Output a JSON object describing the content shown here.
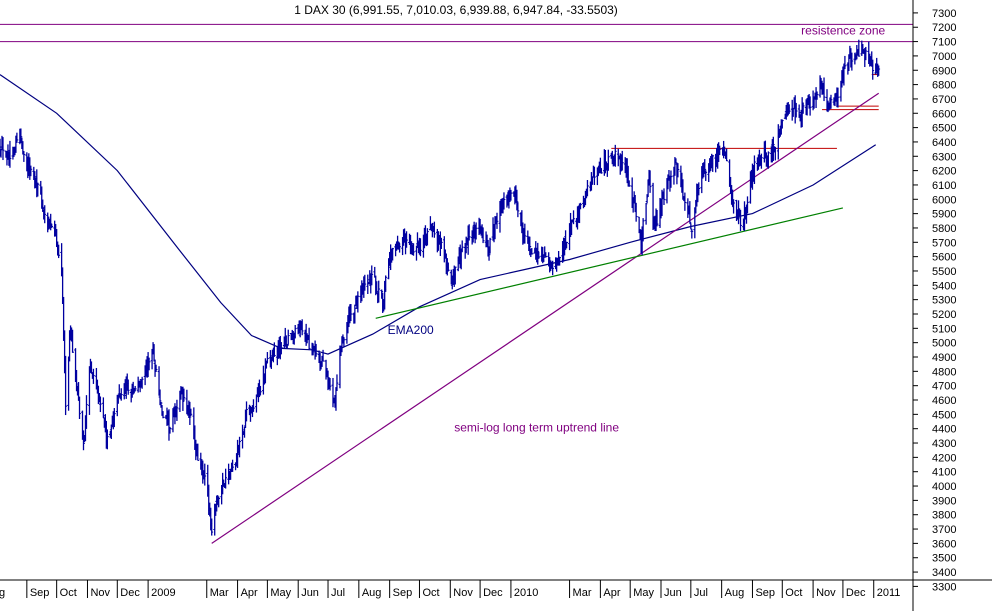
{
  "chart_data": {
    "type": "line",
    "title": "1 DAX 30 (6,991.55, 7,010.03, 6,939.88, 6,947.84, -33.5503)",
    "xlabel": "",
    "ylabel": "",
    "ylim": [
      3240,
      7390
    ],
    "x_range": [
      "2008-08-05",
      "2011-01-06"
    ],
    "y_ticks": [
      3300,
      3400,
      3500,
      3600,
      3700,
      3800,
      3900,
      4000,
      4100,
      4200,
      4300,
      4400,
      4500,
      4600,
      4700,
      4800,
      4900,
      5000,
      5100,
      5200,
      5300,
      5400,
      5500,
      5600,
      5700,
      5800,
      5900,
      6000,
      6100,
      6200,
      6300,
      6400,
      6500,
      6600,
      6700,
      6800,
      6900,
      7000,
      7100,
      7200,
      7300
    ],
    "x_ticks": [
      {
        "date": "2008-08-01",
        "label": "g"
      },
      {
        "date": "2008-09-01",
        "label": "Sep"
      },
      {
        "date": "2008-10-01",
        "label": "Oct"
      },
      {
        "date": "2008-11-01",
        "label": "Nov"
      },
      {
        "date": "2008-12-01",
        "label": "Dec"
      },
      {
        "date": "2009-01-01",
        "label": "2009"
      },
      {
        "date": "2009-03-01",
        "label": "Mar"
      },
      {
        "date": "2009-04-01",
        "label": "Apr"
      },
      {
        "date": "2009-05-01",
        "label": "May"
      },
      {
        "date": "2009-06-01",
        "label": "Jun"
      },
      {
        "date": "2009-07-01",
        "label": "Jul"
      },
      {
        "date": "2009-08-01",
        "label": "Aug"
      },
      {
        "date": "2009-09-01",
        "label": "Sep"
      },
      {
        "date": "2009-10-01",
        "label": "Oct"
      },
      {
        "date": "2009-11-01",
        "label": "Nov"
      },
      {
        "date": "2009-12-01",
        "label": "Dec"
      },
      {
        "date": "2010-01-01",
        "label": "2010"
      },
      {
        "date": "2010-03-01",
        "label": "Mar"
      },
      {
        "date": "2010-04-01",
        "label": "Apr"
      },
      {
        "date": "2010-05-01",
        "label": "May"
      },
      {
        "date": "2010-06-01",
        "label": "Jun"
      },
      {
        "date": "2010-07-01",
        "label": "Jul"
      },
      {
        "date": "2010-08-01",
        "label": "Aug"
      },
      {
        "date": "2010-09-01",
        "label": "Sep"
      },
      {
        "date": "2010-10-01",
        "label": "Oct"
      },
      {
        "date": "2010-11-01",
        "label": "Nov"
      },
      {
        "date": "2010-12-01",
        "label": "Dec"
      },
      {
        "date": "2011-01-01",
        "label": "2011"
      }
    ],
    "series": [
      {
        "name": "",
        "style": "ohlc",
        "color": "#0000a0",
        "x": [
          "2008-08-05",
          "2008-08-15",
          "2008-08-25",
          "2008-09-01",
          "2008-09-10",
          "2008-09-20",
          "2008-09-30",
          "2008-10-06",
          "2008-10-10",
          "2008-10-15",
          "2008-10-20",
          "2008-10-28",
          "2008-11-04",
          "2008-11-14",
          "2008-11-21",
          "2008-12-01",
          "2008-12-10",
          "2008-12-20",
          "2009-01-06",
          "2009-01-15",
          "2009-01-23",
          "2009-02-03",
          "2009-02-12",
          "2009-02-20",
          "2009-03-01",
          "2009-03-06",
          "2009-03-12",
          "2009-03-20",
          "2009-03-31",
          "2009-04-10",
          "2009-04-20",
          "2009-05-01",
          "2009-05-12",
          "2009-05-25",
          "2009-06-05",
          "2009-06-15",
          "2009-06-25",
          "2009-07-03",
          "2009-07-08",
          "2009-07-14",
          "2009-07-24",
          "2009-08-05",
          "2009-08-15",
          "2009-08-25",
          "2009-09-02",
          "2009-09-15",
          "2009-09-25",
          "2009-10-05",
          "2009-10-15",
          "2009-10-25",
          "2009-11-02",
          "2009-11-10",
          "2009-11-20",
          "2009-12-01",
          "2009-12-10",
          "2009-12-20",
          "2010-01-04",
          "2010-01-12",
          "2010-01-22",
          "2010-02-05",
          "2010-02-12",
          "2010-02-22",
          "2010-03-05",
          "2010-03-15",
          "2010-03-25",
          "2010-04-05",
          "2010-04-15",
          "2010-04-26",
          "2010-05-07",
          "2010-05-12",
          "2010-05-20",
          "2010-05-25",
          "2010-06-05",
          "2010-06-15",
          "2010-06-25",
          "2010-07-02",
          "2010-07-12",
          "2010-07-22",
          "2010-08-03",
          "2010-08-12",
          "2010-08-20",
          "2010-08-25",
          "2010-09-03",
          "2010-09-13",
          "2010-09-23",
          "2010-10-01",
          "2010-10-10",
          "2010-10-20",
          "2010-11-01",
          "2010-11-08",
          "2010-11-15",
          "2010-11-25",
          "2010-12-01",
          "2010-12-10",
          "2010-12-20",
          "2010-12-28",
          "2011-01-03",
          "2011-01-06"
        ],
        "values": [
          6400,
          6300,
          6450,
          6250,
          6150,
          5850,
          5750,
          5500,
          4600,
          5100,
          4750,
          4300,
          4850,
          4600,
          4300,
          4600,
          4700,
          4650,
          4950,
          4500,
          4400,
          4650,
          4500,
          4200,
          4000,
          3700,
          3900,
          4050,
          4200,
          4500,
          4600,
          4850,
          4950,
          5050,
          5100,
          4950,
          4850,
          4700,
          4600,
          5000,
          5200,
          5350,
          5450,
          5300,
          5600,
          5700,
          5650,
          5700,
          5800,
          5650,
          5400,
          5600,
          5750,
          5800,
          5650,
          5950,
          6050,
          5800,
          5600,
          5600,
          5500,
          5650,
          5850,
          6000,
          6150,
          6250,
          6300,
          6200,
          5900,
          5700,
          6150,
          5800,
          6050,
          6250,
          6000,
          5800,
          6200,
          6250,
          6350,
          6000,
          5850,
          5900,
          6250,
          6300,
          6350,
          6550,
          6650,
          6600,
          6700,
          6800,
          6650,
          6700,
          6900,
          7000,
          7050,
          6950,
          6900,
          6950
        ]
      },
      {
        "name": "EMA200",
        "color": "#000080",
        "x": [
          "2008-08-05",
          "2008-10-01",
          "2008-12-01",
          "2009-02-01",
          "2009-03-15",
          "2009-04-15",
          "2009-05-15",
          "2009-06-15",
          "2009-07-01",
          "2009-08-15",
          "2009-10-01",
          "2009-12-01",
          "2010-01-15",
          "2010-03-01",
          "2010-05-01",
          "2010-07-01",
          "2010-09-01",
          "2010-11-01",
          "2011-01-03"
        ],
        "values": [
          6870,
          6600,
          6200,
          5650,
          5280,
          5050,
          4960,
          4950,
          4920,
          5060,
          5250,
          5440,
          5510,
          5580,
          5700,
          5810,
          5900,
          6100,
          6380
        ]
      },
      {
        "name": "semi-log long term uptrend line",
        "color": "#800080",
        "x": [
          "2009-03-06",
          "2011-01-06"
        ],
        "values": [
          3600,
          6740
        ]
      },
      {
        "name": "",
        "color": "#008000",
        "x": [
          "2009-08-18",
          "2010-12-01"
        ],
        "values": [
          5170,
          5940
        ]
      }
    ],
    "horizontal_lines": [
      {
        "y": 7220,
        "color": "#800080",
        "label": ""
      },
      {
        "y": 7100,
        "color": "#800080",
        "label": "resistence zone"
      },
      {
        "y": 6355,
        "color": "#c00000",
        "x_from": "2010-04-12",
        "x_to": "2010-11-25"
      },
      {
        "y": 6650,
        "color": "#c00000",
        "x_from": "2010-11-25",
        "x_to": "2011-01-06"
      },
      {
        "y": 6625,
        "color": "#c00000",
        "x_from": "2010-11-10",
        "x_to": "2011-01-06"
      },
      {
        "y": 6870,
        "color": "#c00000",
        "x_from": "2010-12-30",
        "x_to": "2011-01-06"
      }
    ],
    "annotations": [
      {
        "text": "EMA200",
        "x": "2009-08-30",
        "y": 5060,
        "color": "#000080"
      },
      {
        "text": "semi-log long term uptrend line",
        "x": "2009-11-05",
        "y": 4380,
        "color": "#800080"
      },
      {
        "text": "resistence zone",
        "x": "2010-10-20",
        "y": 7150,
        "color": "#800080"
      }
    ],
    "grid": false,
    "legend": "none"
  }
}
